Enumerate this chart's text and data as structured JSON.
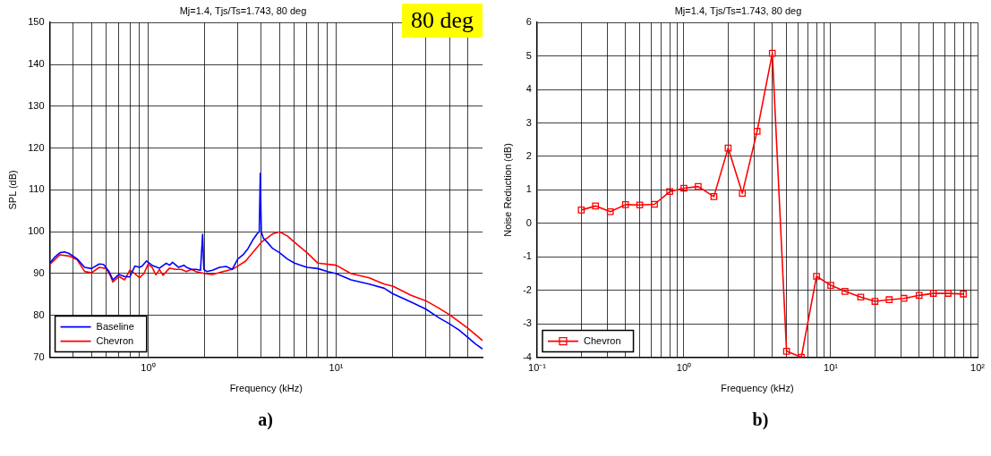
{
  "chart_data": [
    {
      "type": "line",
      "title": "Mj=1.4, Tjs/Ts=1.743, 80 deg",
      "xlabel": "Frequency (kHz)",
      "ylabel": "SPL (dB)",
      "log": "x",
      "grid": true,
      "legend": "bottom left",
      "marker": "none",
      "line_style": "solid",
      "xlim": [
        0.3,
        60
      ],
      "xticks": [
        {
          "value": 0.4,
          "label": null
        },
        {
          "value": 0.5,
          "label": null
        },
        {
          "value": 0.6,
          "label": null
        },
        {
          "value": 0.7,
          "label": null
        },
        {
          "value": 0.8,
          "label": null
        },
        {
          "value": 0.9,
          "label": null
        },
        {
          "value": 1,
          "label": "10⁰"
        },
        {
          "value": 2,
          "label": null
        },
        {
          "value": 3,
          "label": null
        },
        {
          "value": 4,
          "label": null
        },
        {
          "value": 5,
          "label": null
        },
        {
          "value": 6,
          "label": null
        },
        {
          "value": 7,
          "label": null
        },
        {
          "value": 8,
          "label": null
        },
        {
          "value": 9,
          "label": null
        },
        {
          "value": 10,
          "label": "10¹"
        },
        {
          "value": 20,
          "label": null
        },
        {
          "value": 30,
          "label": null
        },
        {
          "value": 40,
          "label": null
        },
        {
          "value": 50,
          "label": null
        }
      ],
      "ylim": [
        70,
        150
      ],
      "yticks": [
        70,
        80,
        90,
        100,
        110,
        120,
        130,
        140,
        150
      ],
      "annotations": [
        "80 deg",
        "a)"
      ],
      "series": [
        {
          "name": "Baseline",
          "color": "#0000ff",
          "x": [
            0.3,
            0.32,
            0.34,
            0.36,
            0.38,
            0.42,
            0.46,
            0.5,
            0.55,
            0.58,
            0.62,
            0.65,
            0.7,
            0.75,
            0.8,
            0.85,
            0.9,
            0.93,
            0.98,
            1.05,
            1.15,
            1.25,
            1.3,
            1.35,
            1.45,
            1.55,
            1.6,
            1.7,
            1.8,
            1.9,
            1.95,
            1.98,
            2.05,
            2.2,
            2.4,
            2.6,
            2.8,
            3.0,
            3.2,
            3.4,
            3.6,
            3.8,
            3.9,
            3.95,
            4.0,
            4.1,
            4.3,
            4.6,
            5.0,
            5.5,
            6,
            6.5,
            7,
            8,
            9,
            10,
            12,
            15,
            18,
            20,
            25,
            30,
            35,
            40,
            45,
            50,
            55,
            60
          ],
          "values": [
            92.5,
            94,
            95,
            95.2,
            94.8,
            93.5,
            91.5,
            91.2,
            92.3,
            92.2,
            90.5,
            88.5,
            89.8,
            89.3,
            89.2,
            91.8,
            91.5,
            91.8,
            93,
            92,
            91.3,
            92.5,
            92,
            92.7,
            91.5,
            92,
            91.5,
            91,
            91,
            90.8,
            99.4,
            91,
            90.5,
            90.8,
            91.5,
            91.7,
            91,
            93.5,
            94.5,
            96,
            98,
            99.5,
            100,
            114,
            100,
            98.5,
            97.5,
            96,
            95,
            93.5,
            92.5,
            92,
            91.5,
            91.2,
            90.5,
            90,
            88.5,
            87.5,
            86.5,
            85.2,
            83.2,
            81.5,
            79.5,
            78,
            76.5,
            74.8,
            73.2,
            72
          ]
        },
        {
          "name": "Chevron",
          "color": "#ff0000",
          "x": [
            0.3,
            0.34,
            0.38,
            0.42,
            0.46,
            0.5,
            0.55,
            0.6,
            0.63,
            0.65,
            0.7,
            0.75,
            0.8,
            0.85,
            0.9,
            0.95,
            1.0,
            1.05,
            1.1,
            1.15,
            1.2,
            1.3,
            1.4,
            1.5,
            1.6,
            1.7,
            1.8,
            2.0,
            2.2,
            2.5,
            2.8,
            3.0,
            3.3,
            3.6,
            4.0,
            4.3,
            4.6,
            5.0,
            5.5,
            6,
            7,
            8,
            10,
            12,
            15,
            18,
            20,
            25,
            30,
            35,
            40,
            50,
            60
          ],
          "values": [
            92.2,
            94.5,
            94.2,
            93.3,
            90.5,
            90.2,
            91.5,
            91.2,
            89.5,
            88,
            89.3,
            88.5,
            90.8,
            90,
            89,
            90,
            92.2,
            91.5,
            89.7,
            91,
            89.6,
            91.3,
            91,
            91,
            90.5,
            91,
            90.5,
            90,
            89.8,
            90.5,
            91,
            91.8,
            93,
            95,
            97.5,
            98.5,
            99.5,
            100,
            99,
            97.5,
            95,
            92.5,
            92,
            90,
            89,
            87.5,
            87,
            84.8,
            83.5,
            81.8,
            80.2,
            77,
            74
          ]
        }
      ]
    },
    {
      "type": "line",
      "title": "Mj=1.4, Tjs/Ts=1.743, 80 deg",
      "xlabel": "Frequency (kHz)",
      "ylabel": "Noise Reduction (dB)",
      "log": "x",
      "grid": true,
      "legend": "bottom left",
      "marker": "square",
      "line_style": "solid",
      "xlim": [
        0.1,
        100
      ],
      "xticks": [
        {
          "value": 0.1,
          "label": "10⁻¹"
        },
        {
          "value": 0.2,
          "label": null
        },
        {
          "value": 0.3,
          "label": null
        },
        {
          "value": 0.4,
          "label": null
        },
        {
          "value": 0.5,
          "label": null
        },
        {
          "value": 0.6,
          "label": null
        },
        {
          "value": 0.7,
          "label": null
        },
        {
          "value": 0.8,
          "label": null
        },
        {
          "value": 0.9,
          "label": null
        },
        {
          "value": 1,
          "label": "10⁰"
        },
        {
          "value": 2,
          "label": null
        },
        {
          "value": 3,
          "label": null
        },
        {
          "value": 4,
          "label": null
        },
        {
          "value": 5,
          "label": null
        },
        {
          "value": 6,
          "label": null
        },
        {
          "value": 7,
          "label": null
        },
        {
          "value": 8,
          "label": null
        },
        {
          "value": 9,
          "label": null
        },
        {
          "value": 10,
          "label": "10¹"
        },
        {
          "value": 20,
          "label": null
        },
        {
          "value": 30,
          "label": null
        },
        {
          "value": 40,
          "label": null
        },
        {
          "value": 50,
          "label": null
        },
        {
          "value": 60,
          "label": null
        },
        {
          "value": 70,
          "label": null
        },
        {
          "value": 80,
          "label": null
        },
        {
          "value": 90,
          "label": null
        },
        {
          "value": 100,
          "label": "10²"
        }
      ],
      "ylim": [
        -4,
        6
      ],
      "yticks": [
        -4,
        -3,
        -2,
        -1,
        0,
        1,
        2,
        3,
        4,
        5,
        6
      ],
      "annotations": [
        "b)"
      ],
      "x": [
        0.2,
        0.25,
        0.315,
        0.4,
        0.5,
        0.63,
        0.8,
        1,
        1.25,
        1.6,
        2,
        2.5,
        3.15,
        4,
        5,
        6.3,
        8,
        10,
        12.5,
        16,
        20,
        25,
        31.5,
        40,
        50,
        63,
        80
      ],
      "series": [
        {
          "name": "Chevron",
          "color": "#ff0000",
          "values": [
            0.4,
            0.52,
            0.35,
            0.56,
            0.55,
            0.57,
            0.95,
            1.05,
            1.1,
            0.8,
            2.25,
            0.9,
            2.75,
            5.08,
            -3.82,
            -4.0,
            -1.58,
            -1.85,
            -2.03,
            -2.2,
            -2.33,
            -2.28,
            -2.24,
            -2.15,
            -2.09,
            -2.09,
            -2.11
          ]
        }
      ]
    }
  ]
}
